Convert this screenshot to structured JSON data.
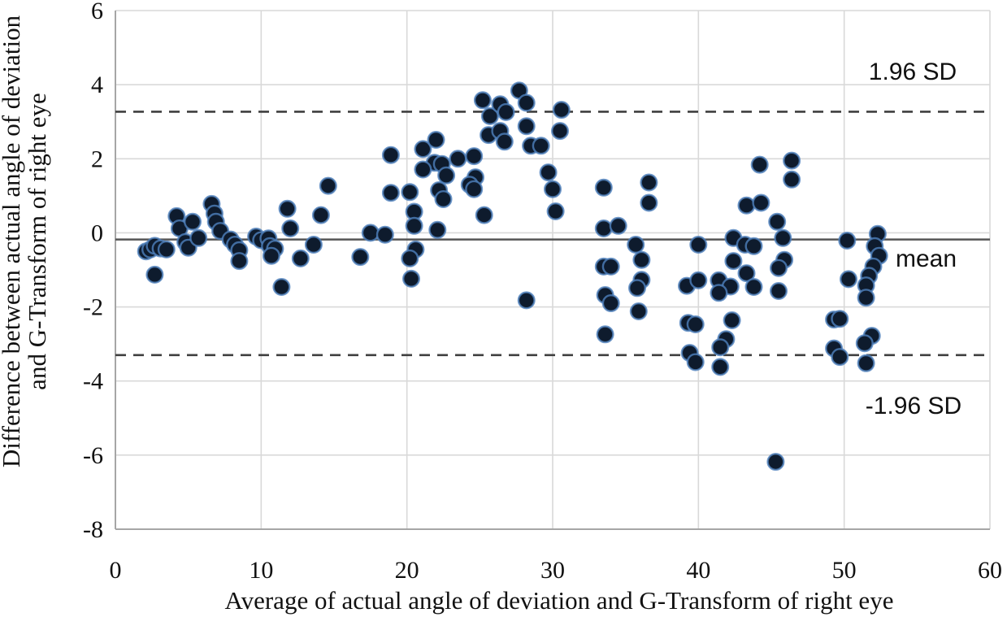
{
  "figure": {
    "background_color": "#ffffff",
    "plot_border_color": "#d9d9d9",
    "axis_line_color": "#a6a6a6",
    "gridline_color": "#d9d9d9"
  },
  "chart_data": {
    "type": "scatter",
    "title": "",
    "xlabel": "Average of actual angle of deviation and G-Transform of right eye",
    "ylabel_lines": [
      "Difference between actual angle of deviation",
      "and G-Transform of right eye"
    ],
    "xlim": [
      0,
      60
    ],
    "ylim": [
      -8,
      6
    ],
    "xticks": [
      0,
      10,
      20,
      30,
      40,
      50,
      60
    ],
    "yticks": [
      6,
      4,
      2,
      0,
      -2,
      -4,
      -6,
      -8
    ],
    "grid": true,
    "legend": "none",
    "marker": {
      "shape": "circle",
      "fill_color": "#0e1b2d",
      "halo_color": "#4f81bd",
      "radius_px": 9.8
    },
    "reference_lines": {
      "mean": {
        "value": -0.18,
        "label": "mean",
        "style": "solid",
        "color": "#555555"
      },
      "upper_loa": {
        "value": 3.27,
        "label": "1.96 SD",
        "style": "dashed",
        "color": "#3f3f3f"
      },
      "lower_loa": {
        "value": -3.3,
        "label": "-1.96 SD",
        "style": "dashed",
        "color": "#3f3f3f"
      }
    },
    "points": [
      [
        2.1,
        -0.5
      ],
      [
        2.4,
        -0.45
      ],
      [
        2.7,
        -0.35
      ],
      [
        3.1,
        -0.42
      ],
      [
        3.5,
        -0.45
      ],
      [
        2.7,
        -1.13
      ],
      [
        4.2,
        0.45
      ],
      [
        4.4,
        0.12
      ],
      [
        5.3,
        0.3
      ],
      [
        4.8,
        -0.25
      ],
      [
        5.0,
        -0.4
      ],
      [
        5.7,
        -0.14
      ],
      [
        6.6,
        0.78
      ],
      [
        6.8,
        0.52
      ],
      [
        6.9,
        0.3
      ],
      [
        7.2,
        0.05
      ],
      [
        7.9,
        -0.18
      ],
      [
        8.2,
        -0.32
      ],
      [
        8.5,
        -0.47
      ],
      [
        8.5,
        -0.76
      ],
      [
        9.65,
        -0.1
      ],
      [
        10.0,
        -0.2
      ],
      [
        10.5,
        -0.15
      ],
      [
        10.6,
        -0.36
      ],
      [
        10.95,
        -0.43
      ],
      [
        10.7,
        -0.62
      ],
      [
        11.4,
        -1.46
      ],
      [
        11.8,
        0.65
      ],
      [
        12.0,
        0.12
      ],
      [
        12.7,
        -0.69
      ],
      [
        13.6,
        -0.32
      ],
      [
        14.1,
        0.48
      ],
      [
        14.6,
        1.27
      ],
      [
        16.8,
        -0.65
      ],
      [
        17.5,
        0.0
      ],
      [
        18.5,
        -0.05
      ],
      [
        18.9,
        2.1
      ],
      [
        21.1,
        2.26
      ],
      [
        22.0,
        2.51
      ],
      [
        23.5,
        2.0
      ],
      [
        24.6,
        2.07
      ],
      [
        21.9,
        1.89
      ],
      [
        22.4,
        1.86
      ],
      [
        21.1,
        1.71
      ],
      [
        22.7,
        1.55
      ],
      [
        24.7,
        1.5
      ],
      [
        24.3,
        1.3
      ],
      [
        24.6,
        1.18
      ],
      [
        18.9,
        1.08
      ],
      [
        20.2,
        1.1
      ],
      [
        22.2,
        1.15
      ],
      [
        22.5,
        0.91
      ],
      [
        20.5,
        0.57
      ],
      [
        25.3,
        0.48
      ],
      [
        20.5,
        0.19
      ],
      [
        22.1,
        0.08
      ],
      [
        20.6,
        -0.45
      ],
      [
        20.2,
        -0.69
      ],
      [
        20.3,
        -1.24
      ],
      [
        25.2,
        3.58
      ],
      [
        25.7,
        3.15
      ],
      [
        25.6,
        2.64
      ],
      [
        26.4,
        3.47
      ],
      [
        27.7,
        3.84
      ],
      [
        28.2,
        3.51
      ],
      [
        26.8,
        3.26
      ],
      [
        30.6,
        3.32
      ],
      [
        28.2,
        2.88
      ],
      [
        30.5,
        2.75
      ],
      [
        26.4,
        2.75
      ],
      [
        26.7,
        2.46
      ],
      [
        28.5,
        2.35
      ],
      [
        29.2,
        2.35
      ],
      [
        29.7,
        1.63
      ],
      [
        30.0,
        1.18
      ],
      [
        30.2,
        0.58
      ],
      [
        28.2,
        -1.82
      ],
      [
        33.5,
        1.22
      ],
      [
        36.6,
        1.36
      ],
      [
        36.6,
        0.81
      ],
      [
        33.5,
        0.12
      ],
      [
        34.5,
        0.19
      ],
      [
        35.7,
        -0.32
      ],
      [
        36.1,
        -0.73
      ],
      [
        33.5,
        -0.91
      ],
      [
        34.0,
        -0.91
      ],
      [
        33.6,
        -1.68
      ],
      [
        34.0,
        -1.9
      ],
      [
        36.1,
        -1.27
      ],
      [
        35.8,
        -1.49
      ],
      [
        35.9,
        -2.12
      ],
      [
        33.6,
        -2.74
      ],
      [
        39.2,
        -1.43
      ],
      [
        40.0,
        -1.28
      ],
      [
        41.4,
        -1.28
      ],
      [
        42.2,
        -1.45
      ],
      [
        41.4,
        -1.62
      ],
      [
        40.0,
        -0.32
      ],
      [
        42.4,
        -0.14
      ],
      [
        43.2,
        -0.32
      ],
      [
        43.8,
        -0.36
      ],
      [
        42.4,
        -0.76
      ],
      [
        43.3,
        -1.09
      ],
      [
        43.8,
        -1.46
      ],
      [
        43.3,
        0.74
      ],
      [
        44.3,
        0.81
      ],
      [
        44.2,
        1.84
      ],
      [
        46.4,
        1.95
      ],
      [
        46.4,
        1.44
      ],
      [
        45.4,
        0.3
      ],
      [
        45.8,
        -0.14
      ],
      [
        45.9,
        -0.73
      ],
      [
        45.5,
        -0.95
      ],
      [
        45.5,
        -1.57
      ],
      [
        39.3,
        -2.43
      ],
      [
        39.8,
        -2.47
      ],
      [
        42.3,
        -2.36
      ],
      [
        41.9,
        -2.87
      ],
      [
        41.5,
        -3.09
      ],
      [
        39.4,
        -3.24
      ],
      [
        39.8,
        -3.49
      ],
      [
        41.5,
        -3.62
      ],
      [
        45.3,
        -6.18
      ],
      [
        50.2,
        -0.21
      ],
      [
        52.3,
        -0.03
      ],
      [
        52.1,
        -0.36
      ],
      [
        52.4,
        -0.62
      ],
      [
        52.0,
        -0.91
      ],
      [
        50.3,
        -1.25
      ],
      [
        51.7,
        -1.16
      ],
      [
        51.5,
        -1.42
      ],
      [
        51.5,
        -1.75
      ],
      [
        49.3,
        -2.34
      ],
      [
        49.7,
        -2.32
      ],
      [
        51.9,
        -2.78
      ],
      [
        51.4,
        -2.98
      ],
      [
        49.3,
        -3.12
      ],
      [
        49.7,
        -3.35
      ],
      [
        51.5,
        -3.52
      ]
    ]
  }
}
